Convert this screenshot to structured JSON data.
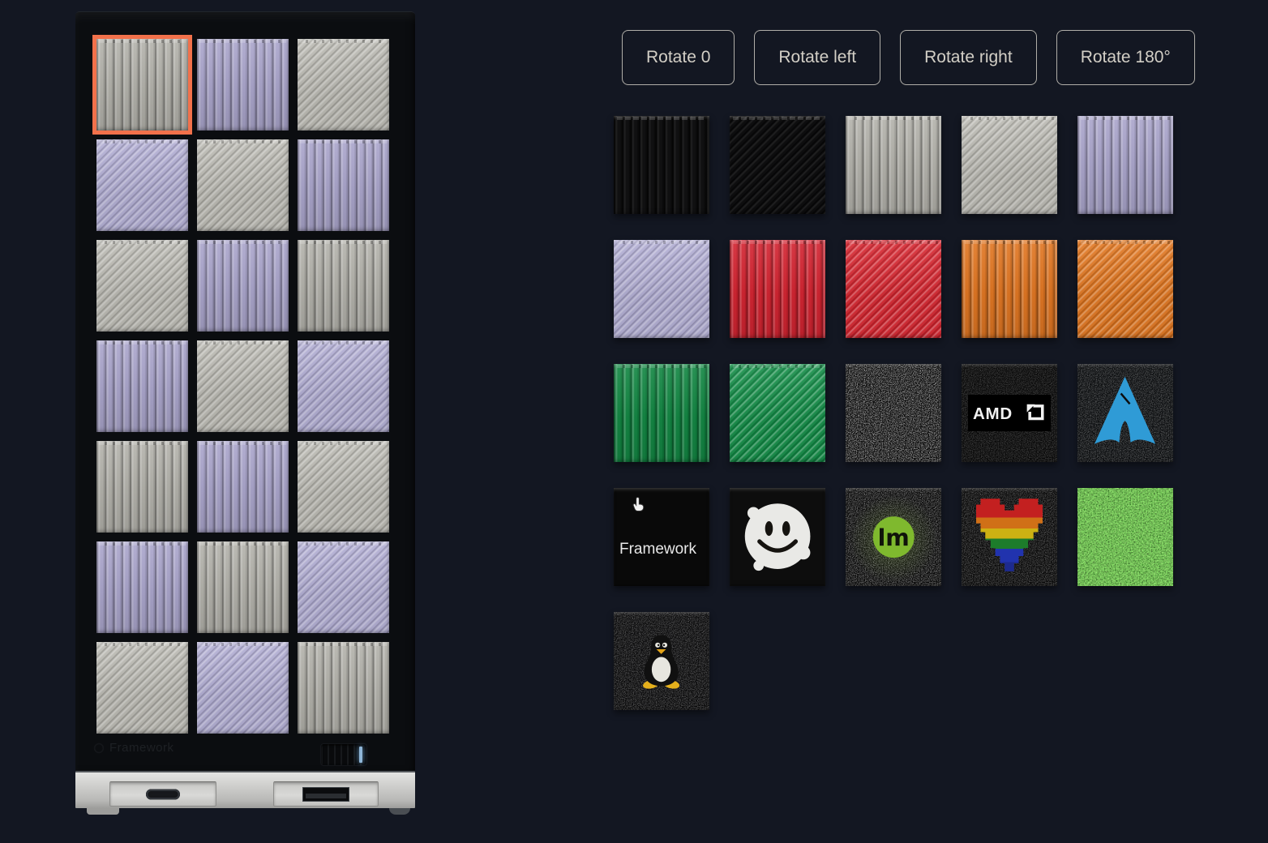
{
  "page": {
    "background_color": "#131722"
  },
  "toolbar": {
    "buttons": [
      {
        "label": "Rotate 0"
      },
      {
        "label": "Rotate left"
      },
      {
        "label": "Rotate right"
      },
      {
        "label": "Rotate 180°"
      }
    ]
  },
  "computer_case": {
    "brand_label": "Framework",
    "grid": {
      "columns": 3,
      "rows": 7,
      "selected_index": 0,
      "tiles": [
        {
          "pattern": "beige-vertical",
          "selected": true
        },
        {
          "pattern": "lavender-vertical"
        },
        {
          "pattern": "beige-diagonal"
        },
        {
          "pattern": "lavender-diagonal"
        },
        {
          "pattern": "beige-diagonal"
        },
        {
          "pattern": "lavender-vertical"
        },
        {
          "pattern": "beige-diagonal"
        },
        {
          "pattern": "lavender-vertical"
        },
        {
          "pattern": "beige-vertical"
        },
        {
          "pattern": "lavender-vertical"
        },
        {
          "pattern": "beige-diagonal"
        },
        {
          "pattern": "lavender-diagonal"
        },
        {
          "pattern": "beige-vertical"
        },
        {
          "pattern": "lavender-vertical"
        },
        {
          "pattern": "beige-diagonal"
        },
        {
          "pattern": "lavender-vertical"
        },
        {
          "pattern": "beige-vertical"
        },
        {
          "pattern": "lavender-diagonal"
        },
        {
          "pattern": "beige-diagonal"
        },
        {
          "pattern": "lavender-diagonal"
        },
        {
          "pattern": "beige-vertical"
        }
      ]
    }
  },
  "palette": {
    "framework_tile_label": "Framework",
    "tiles": [
      {
        "pattern": "black-vertical"
      },
      {
        "pattern": "black-diagonal"
      },
      {
        "pattern": "beige-vertical"
      },
      {
        "pattern": "beige-diagonal"
      },
      {
        "pattern": "lavender-vertical"
      },
      {
        "pattern": "lavender-diagonal"
      },
      {
        "pattern": "red-vertical"
      },
      {
        "pattern": "red-diagonal"
      },
      {
        "pattern": "orange-vertical"
      },
      {
        "pattern": "orange-diagonal"
      },
      {
        "pattern": "green-vertical"
      },
      {
        "pattern": "green-diagonal"
      },
      {
        "pattern": "black-speckle"
      },
      {
        "pattern": "amd-logo"
      },
      {
        "pattern": "arch-logo"
      },
      {
        "pattern": "framework-logo",
        "cursor": true
      },
      {
        "pattern": "smiley"
      },
      {
        "pattern": "linux-mint"
      },
      {
        "pattern": "rainbow-heart"
      },
      {
        "pattern": "grass"
      },
      {
        "pattern": "tux"
      }
    ]
  },
  "brand_marks": {
    "amd": "AMD",
    "mint_monogram": "lm"
  },
  "colors": {
    "selection_outline": "#f2714b",
    "beige": "#b2b1aa",
    "lavender": "#a9a4cb",
    "red": "#d2212e",
    "orange": "#e0741f",
    "green": "#0f8540",
    "arch_blue": "#2f9bd6",
    "mint_green": "#7fb92e",
    "power_led_blue": "#8fb6d8"
  }
}
